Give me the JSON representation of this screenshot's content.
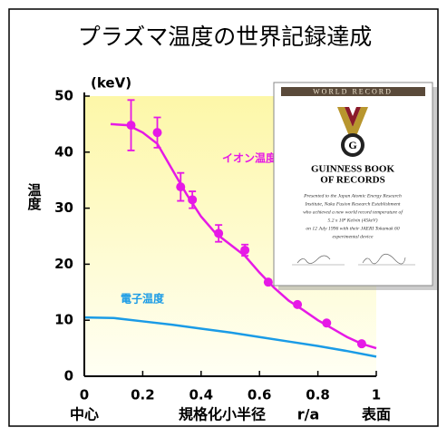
{
  "chart_data": {
    "type": "line",
    "title": "プラズマ温度の世界記録達成",
    "ylabel": "温度",
    "yunit": "(keV)",
    "xlabel": "規格化小半径",
    "xunit": "r/a",
    "x_end_labels": [
      "中心",
      "表面"
    ],
    "xlim": [
      0,
      1
    ],
    "xticks": [
      0,
      0.2,
      0.4,
      0.6,
      0.8,
      1
    ],
    "ylim": [
      0,
      50
    ],
    "yticks": [
      0,
      10,
      20,
      30,
      40,
      50
    ],
    "series": [
      {
        "name": "イオン温度",
        "color": "#e619e6",
        "mode": "markers",
        "x": [
          0.16,
          0.25,
          0.33,
          0.37,
          0.46,
          0.55,
          0.63,
          0.73,
          0.83,
          0.95
        ],
        "values": [
          44.8,
          43.5,
          33.8,
          31.5,
          25.5,
          22.5,
          16.8,
          12.8,
          9.5,
          5.8
        ],
        "errors": [
          4.5,
          2.7,
          2.5,
          1.5,
          1.5,
          1,
          null,
          null,
          null,
          null
        ]
      },
      {
        "color": "#e619e6",
        "mode": "line",
        "x": [
          0.09,
          0.15,
          0.2,
          0.25,
          0.3,
          0.35,
          0.4,
          0.45,
          0.5,
          0.55,
          0.6,
          0.65,
          0.7,
          0.75,
          0.8,
          0.85,
          0.9,
          0.95,
          1
        ],
        "values": [
          45,
          44.8,
          43.5,
          41.5,
          37,
          32.5,
          28.5,
          25.5,
          23.5,
          21.5,
          18.5,
          15.8,
          13.5,
          11.8,
          10,
          8.5,
          7,
          5.8,
          5
        ]
      },
      {
        "name": "電子温度",
        "color": "#1a9be6",
        "mode": "line",
        "x": [
          0,
          0.1,
          0.2,
          0.3,
          0.4,
          0.5,
          0.6,
          0.7,
          0.8,
          0.9,
          1
        ],
        "values": [
          10.5,
          10.4,
          9.8,
          9.2,
          8.5,
          7.8,
          7,
          6.2,
          5.4,
          4.5,
          3.5
        ]
      }
    ]
  },
  "certificate": {
    "header": "WORLD RECORD",
    "title_lines": [
      "GUINNESS BOOK",
      "OF RECORDS"
    ],
    "body_lines": [
      "Presented to the Japan Atomic Energy Research",
      "Institute, Naka Fusion Research Establishment",
      "who achieved a new world record temperature of",
      "5.2 x 10⁸ Kelvin (45keV)",
      "on 12 July 1996 with their JAERI Tokamak 60",
      "experimental device"
    ]
  }
}
